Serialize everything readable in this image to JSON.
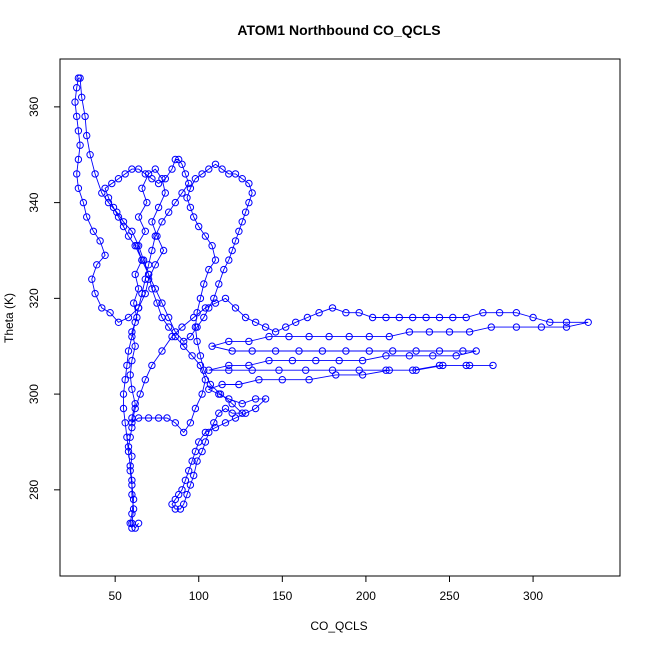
{
  "chart_data": {
    "type": "scatter",
    "title": "ATOM1 Northbound CO_QCLS",
    "xlabel": "CO_QCLS",
    "ylabel": "Theta (K)",
    "xlim": [
      17,
      352
    ],
    "ylim": [
      262,
      370
    ],
    "x_ticks": [
      50,
      100,
      150,
      200,
      250,
      300
    ],
    "y_ticks": [
      280,
      300,
      320,
      340,
      360
    ],
    "grid": false,
    "legend": "none",
    "series_color": "#0000ff",
    "series": [
      {
        "marker": "open-circle",
        "connected": true,
        "points": [
          [
            60,
            272
          ],
          [
            59,
            273
          ],
          [
            60,
            275
          ],
          [
            61,
            278
          ],
          [
            60,
            281
          ],
          [
            59,
            284
          ],
          [
            60,
            287
          ],
          [
            58,
            289
          ],
          [
            59,
            291
          ],
          [
            60,
            293
          ],
          [
            60,
            295
          ],
          [
            62,
            298
          ],
          [
            60,
            301
          ],
          [
            59,
            304
          ],
          [
            60,
            307
          ],
          [
            62,
            310
          ],
          [
            60,
            313
          ],
          [
            63,
            316
          ],
          [
            61,
            319
          ],
          [
            64,
            322
          ],
          [
            62,
            325
          ],
          [
            66,
            328
          ],
          [
            63,
            331
          ],
          [
            68,
            334
          ],
          [
            64,
            337
          ],
          [
            69,
            340
          ],
          [
            66,
            343
          ],
          [
            70,
            346
          ],
          [
            74,
            347
          ],
          [
            78,
            345
          ],
          [
            80,
            342
          ],
          [
            76,
            339
          ],
          [
            72,
            336
          ],
          [
            75,
            333
          ],
          [
            79,
            330
          ],
          [
            74,
            327
          ],
          [
            70,
            324
          ],
          [
            68,
            321
          ],
          [
            64,
            318
          ],
          [
            58,
            316
          ],
          [
            52,
            315
          ],
          [
            47,
            317
          ],
          [
            42,
            318
          ],
          [
            38,
            321
          ],
          [
            36,
            324
          ],
          [
            39,
            327
          ],
          [
            44,
            329
          ],
          [
            41,
            332
          ],
          [
            37,
            334
          ],
          [
            33,
            337
          ],
          [
            31,
            340
          ],
          [
            28,
            343
          ],
          [
            27,
            346
          ],
          [
            28,
            349
          ],
          [
            29,
            352
          ],
          [
            28,
            355
          ],
          [
            27,
            358
          ],
          [
            26,
            361
          ],
          [
            27,
            364
          ],
          [
            28,
            366
          ],
          [
            29,
            366
          ],
          [
            30,
            362
          ],
          [
            32,
            358
          ],
          [
            33,
            354
          ],
          [
            35,
            350
          ],
          [
            38,
            346
          ],
          [
            42,
            342
          ],
          [
            46,
            340
          ],
          [
            51,
            338
          ],
          [
            55,
            336
          ],
          [
            60,
            334
          ],
          [
            64,
            331
          ],
          [
            67,
            328
          ],
          [
            70,
            325
          ],
          [
            72,
            322
          ],
          [
            75,
            319
          ],
          [
            78,
            316
          ],
          [
            82,
            314
          ],
          [
            86,
            312
          ],
          [
            91,
            310
          ],
          [
            96,
            308
          ],
          [
            101,
            306
          ],
          [
            104,
            303
          ],
          [
            102,
            300
          ],
          [
            98,
            297
          ],
          [
            95,
            294
          ],
          [
            91,
            292
          ],
          [
            86,
            294
          ],
          [
            81,
            295
          ],
          [
            76,
            295
          ],
          [
            70,
            295
          ],
          [
            64,
            295
          ],
          [
            60,
            294
          ],
          [
            62,
            297
          ],
          [
            65,
            300
          ],
          [
            68,
            303
          ],
          [
            72,
            306
          ],
          [
            78,
            309
          ],
          [
            84,
            312
          ],
          [
            90,
            314
          ],
          [
            97,
            316
          ],
          [
            104,
            318
          ],
          [
            110,
            319
          ],
          [
            116,
            320
          ],
          [
            122,
            318
          ],
          [
            128,
            316
          ],
          [
            134,
            315
          ],
          [
            140,
            314
          ],
          [
            146,
            313
          ],
          [
            152,
            314
          ],
          [
            158,
            315
          ],
          [
            165,
            316
          ],
          [
            172,
            317
          ],
          [
            180,
            318
          ],
          [
            188,
            317
          ],
          [
            196,
            317
          ],
          [
            204,
            316
          ],
          [
            212,
            316
          ],
          [
            220,
            316
          ],
          [
            228,
            316
          ],
          [
            236,
            316
          ],
          [
            244,
            316
          ],
          [
            252,
            316
          ],
          [
            260,
            316
          ],
          [
            270,
            317
          ],
          [
            280,
            317
          ],
          [
            290,
            317
          ],
          [
            300,
            316
          ],
          [
            310,
            315
          ],
          [
            320,
            315
          ],
          [
            333,
            315
          ],
          [
            320,
            314
          ],
          [
            305,
            314
          ],
          [
            290,
            314
          ],
          [
            275,
            314
          ],
          [
            262,
            313
          ],
          [
            250,
            313
          ],
          [
            238,
            313
          ],
          [
            226,
            313
          ],
          [
            214,
            312
          ],
          [
            202,
            312
          ],
          [
            190,
            312
          ],
          [
            178,
            312
          ],
          [
            166,
            312
          ],
          [
            154,
            312
          ],
          [
            142,
            312
          ],
          [
            130,
            311
          ],
          [
            118,
            311
          ],
          [
            108,
            310
          ],
          [
            120,
            309
          ],
          [
            132,
            309
          ],
          [
            146,
            309
          ],
          [
            160,
            309
          ],
          [
            174,
            309
          ],
          [
            188,
            309
          ],
          [
            202,
            309
          ],
          [
            216,
            309
          ],
          [
            230,
            309
          ],
          [
            244,
            309
          ],
          [
            258,
            309
          ],
          [
            266,
            309
          ],
          [
            254,
            308
          ],
          [
            240,
            308
          ],
          [
            226,
            308
          ],
          [
            212,
            308
          ],
          [
            198,
            307
          ],
          [
            184,
            307
          ],
          [
            170,
            307
          ],
          [
            156,
            307
          ],
          [
            142,
            307
          ],
          [
            130,
            306
          ],
          [
            118,
            306
          ],
          [
            106,
            305
          ],
          [
            118,
            305
          ],
          [
            132,
            305
          ],
          [
            148,
            305
          ],
          [
            164,
            305
          ],
          [
            180,
            305
          ],
          [
            196,
            305
          ],
          [
            212,
            305
          ],
          [
            228,
            305
          ],
          [
            244,
            306
          ],
          [
            260,
            306
          ],
          [
            276,
            306
          ],
          [
            262,
            306
          ],
          [
            246,
            306
          ],
          [
            230,
            305
          ],
          [
            214,
            305
          ],
          [
            198,
            304
          ],
          [
            182,
            304
          ],
          [
            166,
            303
          ],
          [
            150,
            303
          ],
          [
            136,
            303
          ],
          [
            124,
            302
          ],
          [
            114,
            302
          ],
          [
            106,
            301
          ],
          [
            112,
            300
          ],
          [
            118,
            299
          ],
          [
            126,
            298
          ],
          [
            134,
            299
          ],
          [
            140,
            299
          ],
          [
            134,
            297
          ],
          [
            128,
            296
          ],
          [
            122,
            295
          ],
          [
            116,
            294
          ],
          [
            110,
            293
          ],
          [
            104,
            292
          ],
          [
            100,
            290
          ],
          [
            98,
            288
          ],
          [
            96,
            286
          ],
          [
            94,
            284
          ],
          [
            92,
            282
          ],
          [
            90,
            280
          ],
          [
            88,
            279
          ],
          [
            86,
            278
          ],
          [
            84,
            277
          ],
          [
            86,
            276
          ],
          [
            89,
            276
          ],
          [
            91,
            277
          ],
          [
            93,
            279
          ],
          [
            95,
            281
          ],
          [
            97,
            283
          ],
          [
            99,
            286
          ],
          [
            102,
            288
          ],
          [
            104,
            290
          ],
          [
            106,
            292
          ],
          [
            109,
            294
          ],
          [
            112,
            296
          ],
          [
            116,
            297
          ],
          [
            120,
            296
          ],
          [
            126,
            296
          ],
          [
            120,
            298
          ],
          [
            113,
            300
          ],
          [
            107,
            302
          ],
          [
            103,
            305
          ],
          [
            101,
            308
          ],
          [
            99,
            311
          ],
          [
            98,
            314
          ],
          [
            99,
            317
          ],
          [
            101,
            320
          ],
          [
            103,
            323
          ],
          [
            106,
            326
          ],
          [
            110,
            328
          ],
          [
            108,
            331
          ],
          [
            104,
            333
          ],
          [
            100,
            335
          ],
          [
            97,
            337
          ],
          [
            95,
            339
          ],
          [
            93,
            341
          ],
          [
            95,
            343
          ],
          [
            98,
            345
          ],
          [
            102,
            346
          ],
          [
            106,
            347
          ],
          [
            110,
            348
          ],
          [
            114,
            347
          ],
          [
            118,
            346
          ],
          [
            122,
            346
          ],
          [
            126,
            345
          ],
          [
            130,
            344
          ],
          [
            132,
            342
          ],
          [
            130,
            340
          ],
          [
            128,
            338
          ],
          [
            126,
            336
          ],
          [
            124,
            334
          ],
          [
            122,
            332
          ],
          [
            120,
            330
          ],
          [
            118,
            328
          ],
          [
            115,
            326
          ],
          [
            112,
            323
          ],
          [
            109,
            320
          ],
          [
            106,
            318
          ],
          [
            103,
            316
          ],
          [
            99,
            314
          ],
          [
            95,
            312
          ],
          [
            91,
            311
          ],
          [
            86,
            313
          ],
          [
            82,
            316
          ],
          [
            78,
            319
          ],
          [
            74,
            322
          ],
          [
            70,
            325
          ],
          [
            66,
            328
          ],
          [
            62,
            331
          ],
          [
            58,
            333
          ],
          [
            55,
            335
          ],
          [
            52,
            337
          ],
          [
            49,
            339
          ],
          [
            46,
            341
          ],
          [
            44,
            343
          ],
          [
            48,
            344
          ],
          [
            52,
            345
          ],
          [
            56,
            346
          ],
          [
            60,
            347
          ],
          [
            64,
            347
          ],
          [
            68,
            346
          ],
          [
            72,
            345
          ],
          [
            76,
            344
          ],
          [
            80,
            345
          ],
          [
            84,
            347
          ],
          [
            86,
            349
          ],
          [
            88,
            349
          ],
          [
            90,
            348
          ],
          [
            92,
            346
          ],
          [
            94,
            344
          ],
          [
            90,
            342
          ],
          [
            86,
            340
          ],
          [
            82,
            338
          ],
          [
            78,
            336
          ],
          [
            74,
            333
          ],
          [
            72,
            330
          ],
          [
            70,
            327
          ],
          [
            68,
            324
          ],
          [
            66,
            321
          ],
          [
            64,
            318
          ],
          [
            62,
            315
          ],
          [
            60,
            312
          ],
          [
            58,
            309
          ],
          [
            57,
            306
          ],
          [
            56,
            303
          ],
          [
            55,
            300
          ],
          [
            55,
            297
          ],
          [
            56,
            294
          ],
          [
            57,
            291
          ],
          [
            58,
            288
          ],
          [
            59,
            285
          ],
          [
            60,
            282
          ],
          [
            60,
            279
          ],
          [
            61,
            276
          ],
          [
            60,
            273
          ],
          [
            62,
            272
          ],
          [
            64,
            273
          ]
        ]
      }
    ]
  }
}
